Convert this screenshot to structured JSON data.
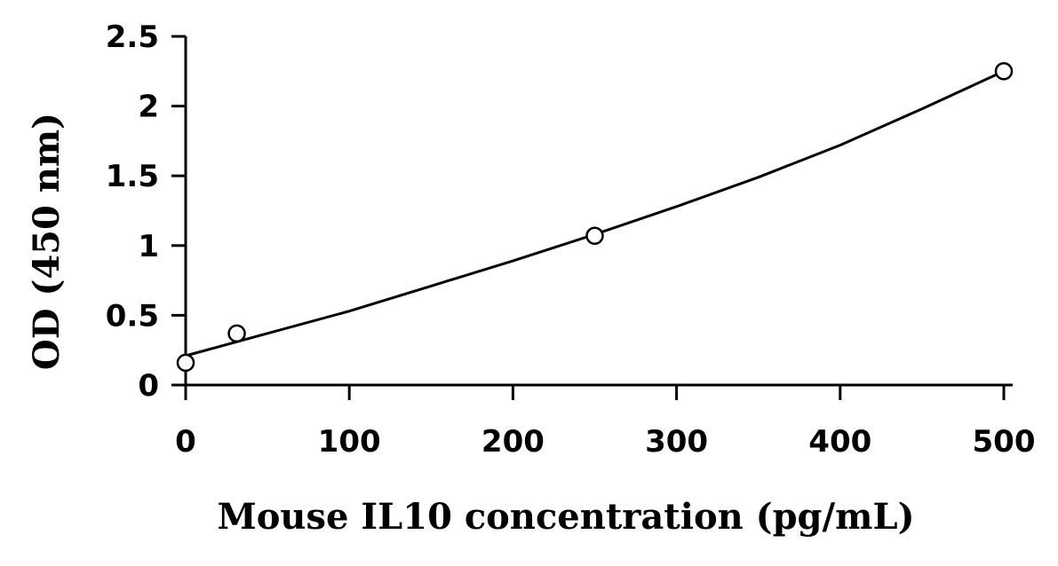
{
  "chart_data": {
    "type": "scatter",
    "title": "",
    "xlabel": "Mouse IL10 concentration (pg/mL)",
    "ylabel": "OD (450 nm)",
    "xlim": [
      0,
      500
    ],
    "ylim": [
      0,
      2.5
    ],
    "x_ticks": [
      0,
      100,
      200,
      300,
      400,
      500
    ],
    "y_ticks": [
      0,
      0.5,
      1,
      1.5,
      2,
      2.5
    ],
    "x_tick_labels": [
      "0",
      "100",
      "200",
      "300",
      "400",
      "500"
    ],
    "y_tick_labels": [
      "0",
      "0.5",
      "1",
      "1.5",
      "2",
      "2.5"
    ],
    "grid": false,
    "legend": false,
    "series": [
      {
        "marker": "open-circle",
        "x": [
          0,
          31.25,
          250,
          500
        ],
        "y": [
          0.16,
          0.37,
          1.07,
          2.25
        ]
      }
    ],
    "fit_curve": {
      "type": "polynomial",
      "x": [
        0,
        50,
        100,
        150,
        200,
        250,
        300,
        350,
        400,
        450,
        500
      ],
      "y": [
        0.21,
        0.37,
        0.53,
        0.71,
        0.89,
        1.08,
        1.28,
        1.49,
        1.72,
        1.98,
        2.25
      ]
    },
    "colors": {
      "axis": "#000000",
      "marker_stroke": "#000000",
      "marker_fill": "#ffffff",
      "curve": "#000000"
    }
  }
}
